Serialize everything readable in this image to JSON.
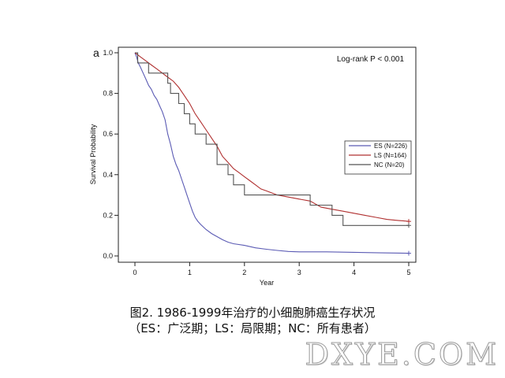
{
  "panel_label": "a",
  "chart_data": {
    "type": "line",
    "title": "",
    "xlabel": "Year",
    "ylabel": "Survival Probability",
    "xlim": [
      0,
      5
    ],
    "ylim": [
      0,
      1
    ],
    "xticks": [
      0,
      1,
      2,
      3,
      4,
      5
    ],
    "yticks": [
      0.0,
      0.2,
      0.4,
      0.6,
      0.8,
      1.0
    ],
    "ytick_labels": [
      "0.0",
      "0.2",
      "0.4",
      "0.6",
      "0.8",
      "1.0"
    ],
    "grid": false,
    "legend_position": "right",
    "annotation": "Log-rank P < 0.001",
    "series": [
      {
        "name": "ES (N=226)",
        "color": "#5b5bb4",
        "censor_mark": {
          "x": 5.0,
          "y": 0.013
        },
        "points": [
          [
            0,
            1.0
          ],
          [
            0.03,
            0.98
          ],
          [
            0.06,
            0.95
          ],
          [
            0.1,
            0.93
          ],
          [
            0.15,
            0.9
          ],
          [
            0.2,
            0.87
          ],
          [
            0.25,
            0.84
          ],
          [
            0.3,
            0.82
          ],
          [
            0.35,
            0.79
          ],
          [
            0.4,
            0.77
          ],
          [
            0.45,
            0.74
          ],
          [
            0.5,
            0.71
          ],
          [
            0.55,
            0.67
          ],
          [
            0.6,
            0.6
          ],
          [
            0.65,
            0.55
          ],
          [
            0.7,
            0.49
          ],
          [
            0.75,
            0.45
          ],
          [
            0.8,
            0.42
          ],
          [
            0.85,
            0.38
          ],
          [
            0.9,
            0.34
          ],
          [
            0.95,
            0.3
          ],
          [
            1.0,
            0.26
          ],
          [
            1.05,
            0.22
          ],
          [
            1.1,
            0.19
          ],
          [
            1.15,
            0.17
          ],
          [
            1.2,
            0.155
          ],
          [
            1.3,
            0.13
          ],
          [
            1.4,
            0.11
          ],
          [
            1.5,
            0.095
          ],
          [
            1.6,
            0.08
          ],
          [
            1.7,
            0.068
          ],
          [
            1.8,
            0.06
          ],
          [
            2.0,
            0.052
          ],
          [
            2.2,
            0.04
          ],
          [
            2.4,
            0.033
          ],
          [
            2.6,
            0.027
          ],
          [
            2.8,
            0.022
          ],
          [
            3.0,
            0.02
          ],
          [
            3.5,
            0.02
          ],
          [
            4.0,
            0.018
          ],
          [
            4.5,
            0.015
          ],
          [
            5.0,
            0.013
          ]
        ]
      },
      {
        "name": "LS (N=164)",
        "color": "#b03030",
        "censor_mark": {
          "x": 5.0,
          "y": 0.17
        },
        "points": [
          [
            0,
            1.0
          ],
          [
            0.05,
            0.99
          ],
          [
            0.1,
            0.98
          ],
          [
            0.2,
            0.96
          ],
          [
            0.3,
            0.94
          ],
          [
            0.4,
            0.92
          ],
          [
            0.5,
            0.9
          ],
          [
            0.6,
            0.88
          ],
          [
            0.7,
            0.86
          ],
          [
            0.8,
            0.83
          ],
          [
            0.9,
            0.79
          ],
          [
            1.0,
            0.75
          ],
          [
            1.1,
            0.7
          ],
          [
            1.2,
            0.66
          ],
          [
            1.3,
            0.62
          ],
          [
            1.4,
            0.58
          ],
          [
            1.5,
            0.54
          ],
          [
            1.6,
            0.49
          ],
          [
            1.7,
            0.46
          ],
          [
            1.8,
            0.43
          ],
          [
            1.9,
            0.41
          ],
          [
            2.0,
            0.39
          ],
          [
            2.1,
            0.37
          ],
          [
            2.2,
            0.35
          ],
          [
            2.3,
            0.33
          ],
          [
            2.4,
            0.32
          ],
          [
            2.5,
            0.31
          ],
          [
            2.6,
            0.3
          ],
          [
            2.8,
            0.29
          ],
          [
            3.0,
            0.28
          ],
          [
            3.2,
            0.27
          ],
          [
            3.4,
            0.24
          ],
          [
            3.6,
            0.23
          ],
          [
            3.8,
            0.22
          ],
          [
            4.0,
            0.21
          ],
          [
            4.2,
            0.2
          ],
          [
            4.4,
            0.19
          ],
          [
            4.6,
            0.18
          ],
          [
            4.8,
            0.175
          ],
          [
            5.0,
            0.17
          ]
        ]
      },
      {
        "name": "NC (N=20)",
        "color": "#555555",
        "censor_mark": {
          "x": 5.0,
          "y": 0.15
        },
        "points": [
          [
            0,
            1.0
          ],
          [
            0.05,
            1.0
          ],
          [
            0.05,
            0.95
          ],
          [
            0.25,
            0.95
          ],
          [
            0.25,
            0.9
          ],
          [
            0.6,
            0.9
          ],
          [
            0.6,
            0.85
          ],
          [
            0.65,
            0.85
          ],
          [
            0.65,
            0.8
          ],
          [
            0.8,
            0.8
          ],
          [
            0.8,
            0.75
          ],
          [
            0.9,
            0.75
          ],
          [
            0.9,
            0.7
          ],
          [
            1.0,
            0.7
          ],
          [
            1.0,
            0.65
          ],
          [
            1.1,
            0.65
          ],
          [
            1.1,
            0.6
          ],
          [
            1.3,
            0.6
          ],
          [
            1.3,
            0.55
          ],
          [
            1.5,
            0.55
          ],
          [
            1.5,
            0.45
          ],
          [
            1.7,
            0.45
          ],
          [
            1.7,
            0.4
          ],
          [
            1.8,
            0.4
          ],
          [
            1.8,
            0.35
          ],
          [
            2.0,
            0.35
          ],
          [
            2.0,
            0.3
          ],
          [
            3.2,
            0.3
          ],
          [
            3.2,
            0.25
          ],
          [
            3.6,
            0.25
          ],
          [
            3.6,
            0.2
          ],
          [
            3.8,
            0.2
          ],
          [
            3.8,
            0.15
          ],
          [
            5.0,
            0.15
          ]
        ]
      }
    ]
  },
  "caption": {
    "line1": "图2. 1986-1999年治疗的小细胞肺癌生存状况",
    "line2": "（ES：广泛期；LS：局限期；NC：所有患者）"
  },
  "watermark": "DXYE.COM"
}
